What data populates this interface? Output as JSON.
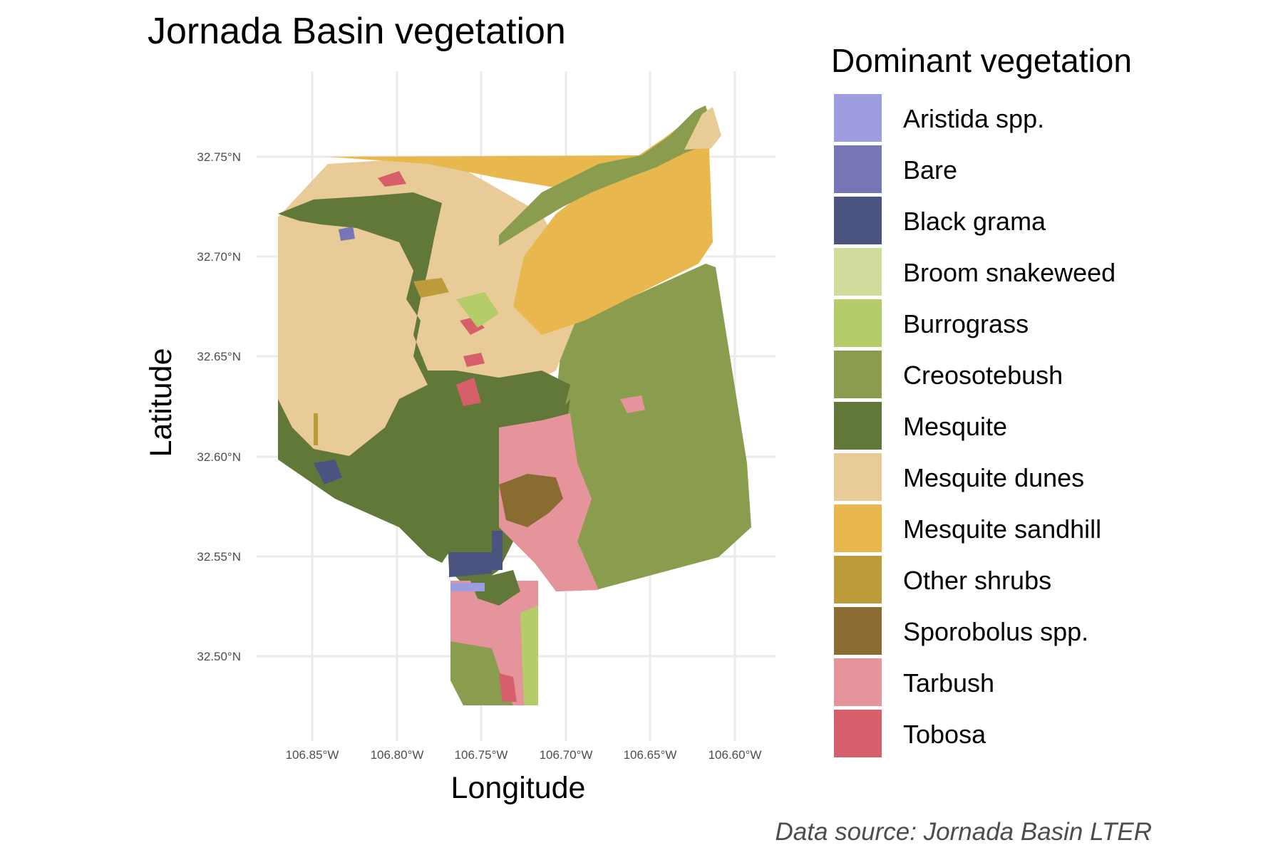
{
  "title": "Jornada Basin vegetation",
  "x_axis": {
    "label": "Longitude",
    "ticks": [
      "106.85°W",
      "106.80°W",
      "106.75°W",
      "106.70°W",
      "106.65°W",
      "106.60°W"
    ]
  },
  "y_axis": {
    "label": "Latitude",
    "ticks": [
      "32.75°N",
      "32.70°N",
      "32.65°N",
      "32.60°N",
      "32.55°N",
      "32.50°N"
    ]
  },
  "legend": {
    "title": "Dominant vegetation",
    "items": [
      {
        "label": "Aristida spp.",
        "color": "#9e9ddf"
      },
      {
        "label": "Bare",
        "color": "#7675b5"
      },
      {
        "label": "Black grama",
        "color": "#4b5481"
      },
      {
        "label": "Broom snakeweed",
        "color": "#d0dc9c"
      },
      {
        "label": "Burrograss",
        "color": "#b4cd68"
      },
      {
        "label": "Creosotebush",
        "color": "#8a9d4f"
      },
      {
        "label": "Mesquite",
        "color": "#627839"
      },
      {
        "label": "Mesquite dunes",
        "color": "#e8cb96"
      },
      {
        "label": "Mesquite sandhill",
        "color": "#e8b84f"
      },
      {
        "label": "Other shrubs",
        "color": "#bb9b3a"
      },
      {
        "label": "Sporobolus spp.",
        "color": "#8a6c32"
      },
      {
        "label": "Tarbush",
        "color": "#e5949b"
      },
      {
        "label": "Tobosa",
        "color": "#d65f6b"
      }
    ]
  },
  "caption": "Data source: Jornada Basin LTER"
}
